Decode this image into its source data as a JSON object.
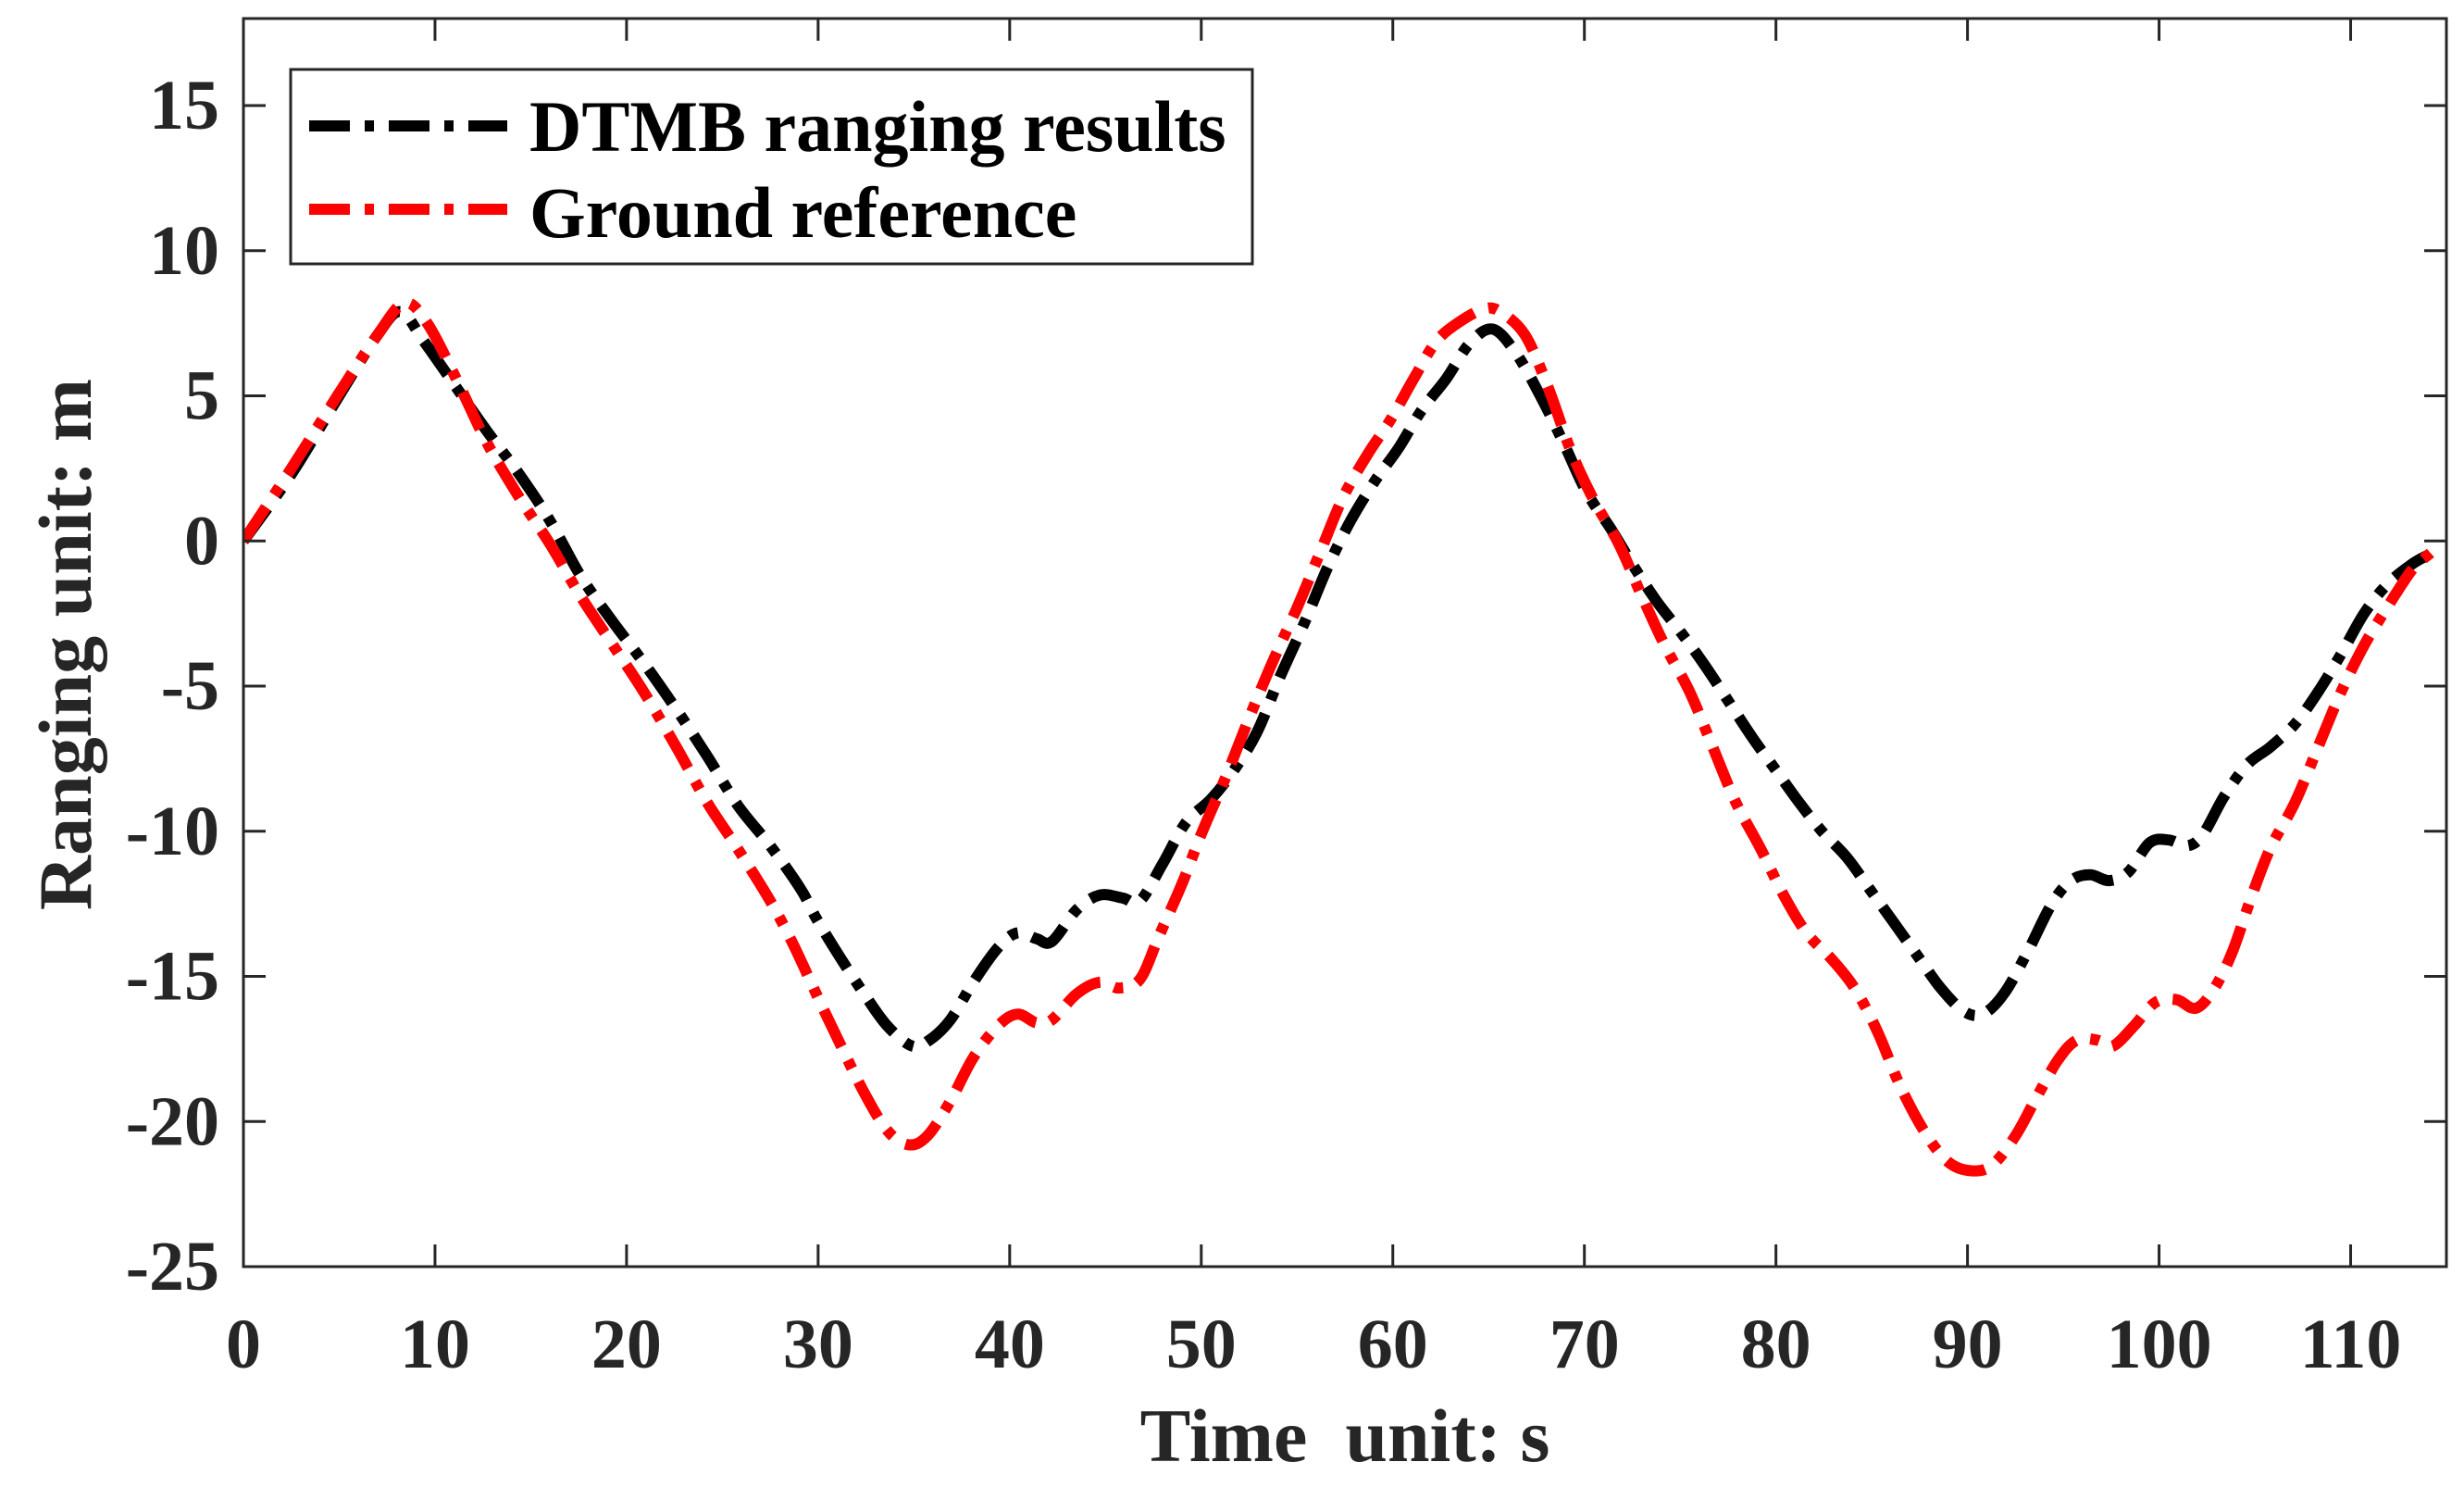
{
  "chart_data": {
    "type": "line",
    "title": "",
    "xlabel": "Time  unit: s",
    "ylabel": "Ranging unit: m",
    "xlim": [
      0,
      115
    ],
    "ylim": [
      -25,
      18
    ],
    "xticks": [
      0,
      10,
      20,
      30,
      40,
      50,
      60,
      70,
      80,
      90,
      100,
      110
    ],
    "yticks": [
      15,
      10,
      5,
      0,
      -5,
      -10,
      -15,
      -20,
      -25
    ],
    "grid": false,
    "legend_position": "top-left",
    "series": [
      {
        "name": "DTMB ranging results",
        "color": "#000000",
        "line_style": "dash-dot",
        "x": [
          0,
          2.5,
          4.9,
          7,
          8.2,
          9.4,
          11.1,
          12.7,
          14.4,
          16,
          17.6,
          19.3,
          20.9,
          22.6,
          24.2,
          25.8,
          27.5,
          29.1,
          29.9,
          31.2,
          32.4,
          33.6,
          34.9,
          35.8,
          36.9,
          38.1,
          39.4,
          40.4,
          41.4,
          42.2,
          43.5,
          44.7,
          45.9,
          46.8,
          48,
          49.2,
          50.5,
          51.7,
          52.9,
          54.1,
          55.4,
          56.6,
          57.8,
          59.1,
          60.3,
          61.5,
          62.8,
          64,
          65.2,
          66.4,
          67.7,
          68.9,
          70.1,
          71.4,
          72.6,
          73.8,
          75.1,
          76.3,
          77.5,
          78.8,
          80,
          81.2,
          82.4,
          83.7,
          84.9,
          86.1,
          87.4,
          88.6,
          89.8,
          90.8,
          91.9,
          93.1,
          94.4,
          95.4,
          96.4,
          97.4,
          98.4,
          99.5,
          100.5,
          101.5,
          102.3,
          103.4,
          104.6,
          105.8,
          107.1,
          108.3,
          109.5,
          110.7,
          111.9,
          113.2,
          114
        ],
        "y": [
          0,
          2.3,
          4.9,
          7.1,
          7.9,
          6.9,
          5.3,
          3.8,
          2.3,
          0.7,
          -1.2,
          -2.8,
          -4.2,
          -5.8,
          -7.4,
          -9.1,
          -10.5,
          -12,
          -13,
          -14.4,
          -15.6,
          -16.7,
          -17.4,
          -17.2,
          -16.5,
          -15.2,
          -14,
          -13.5,
          -13.7,
          -13.8,
          -12.7,
          -12.2,
          -12.3,
          -12.4,
          -11.1,
          -9.7,
          -8.9,
          -7.9,
          -6.6,
          -4.7,
          -2.8,
          -0.9,
          0.7,
          2.1,
          3.2,
          4.5,
          5.6,
          6.8,
          7.3,
          6.5,
          5,
          3.4,
          1.7,
          0.4,
          -0.9,
          -2.1,
          -3.2,
          -4.3,
          -5.5,
          -6.8,
          -7.9,
          -9,
          -10,
          -10.9,
          -12,
          -13.1,
          -14.3,
          -15.4,
          -16.2,
          -16.3,
          -15.6,
          -14.2,
          -12.5,
          -11.7,
          -11.5,
          -11.7,
          -11.4,
          -10.4,
          -10.3,
          -10.5,
          -10.1,
          -8.8,
          -7.7,
          -7.1,
          -6.3,
          -5.2,
          -3.9,
          -2.5,
          -1.5,
          -0.8,
          -0.5
        ]
      },
      {
        "name": "Ground reference",
        "color": "#ff0000",
        "line_style": "dash-dot",
        "x": [
          0,
          2.5,
          4.9,
          7,
          8.4,
          9.6,
          11.1,
          12.7,
          14.4,
          16,
          17.6,
          19.3,
          20.9,
          22.6,
          24.2,
          25.8,
          27.5,
          28.7,
          29.9,
          31.2,
          32.4,
          33.6,
          34.7,
          35.7,
          36.9,
          38.1,
          39.4,
          40.4,
          41.4,
          42.2,
          43.5,
          44.7,
          45.7,
          46.8,
          47.8,
          49,
          50,
          51.3,
          52.5,
          53.7,
          55,
          56.2,
          57.4,
          58.7,
          59.9,
          61.1,
          62.3,
          63.6,
          64.8,
          65.6,
          66.9,
          68.1,
          69.3,
          70.5,
          71.8,
          73,
          74.2,
          75.5,
          76.7,
          77.9,
          79.2,
          80.4,
          81.6,
          82.9,
          84.1,
          85.3,
          86.5,
          87.8,
          89,
          90.2,
          91.3,
          92.5,
          93.5,
          94.7,
          95.7,
          96.8,
          97.6,
          98.7,
          99.8,
          100.9,
          101.9,
          102.8,
          103.8,
          104.8,
          105.8,
          107.1,
          108.3,
          109.5,
          110.7,
          111.9,
          113.2,
          114.2
        ],
        "y": [
          0,
          2.5,
          5,
          7.1,
          8.2,
          7.5,
          5.6,
          3.4,
          1.5,
          -0.1,
          -1.9,
          -3.6,
          -5.2,
          -7.1,
          -9,
          -10.6,
          -12.4,
          -13.9,
          -15.6,
          -17.4,
          -19,
          -20.3,
          -20.8,
          -20.5,
          -19.3,
          -17.8,
          -16.7,
          -16.3,
          -16.6,
          -16.5,
          -15.6,
          -15.2,
          -15.4,
          -15.1,
          -13.6,
          -11.8,
          -10.1,
          -8.1,
          -6.1,
          -4.2,
          -2.3,
          -0.4,
          1.5,
          3,
          4.2,
          5.6,
          6.9,
          7.6,
          8,
          7.9,
          7.1,
          5.3,
          3.1,
          1.4,
          -0.1,
          -1.9,
          -3.6,
          -5.2,
          -7.1,
          -9,
          -10.6,
          -12.2,
          -13.5,
          -14.4,
          -15.4,
          -16.9,
          -18.8,
          -20.4,
          -21.4,
          -21.7,
          -21.5,
          -20.5,
          -19.3,
          -17.9,
          -17.2,
          -17.2,
          -17.4,
          -16.7,
          -15.9,
          -15.8,
          -16.1,
          -15.5,
          -14.2,
          -12.3,
          -10.6,
          -9,
          -7.1,
          -5.2,
          -3.6,
          -2.3,
          -1,
          -0.4
        ]
      }
    ]
  }
}
